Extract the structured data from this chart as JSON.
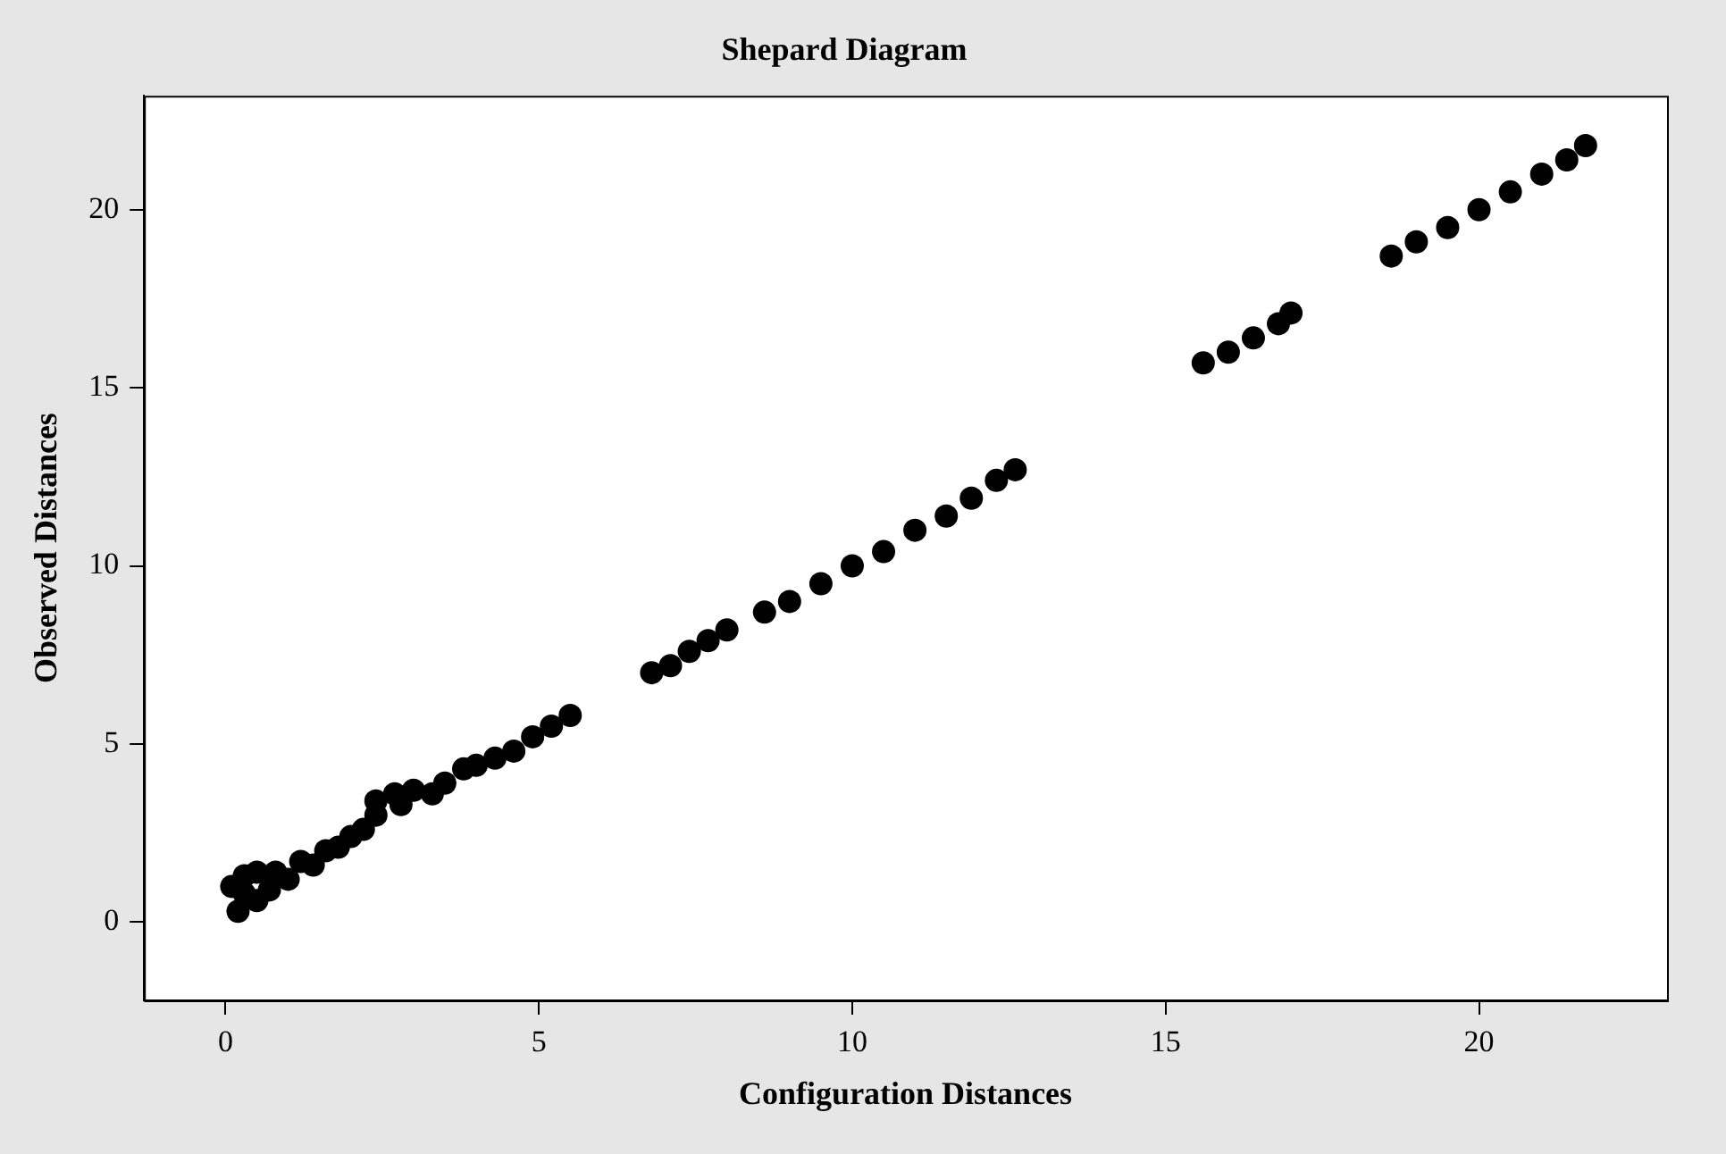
{
  "chart_data": {
    "type": "scatter",
    "title": "Shepard Diagram",
    "xlabel": "Configuration Distances",
    "ylabel": "Observed Distances",
    "x": [
      0.1,
      0.2,
      0.3,
      0.3,
      0.5,
      0.5,
      0.7,
      0.8,
      1.0,
      1.2,
      1.4,
      1.6,
      1.8,
      2.0,
      2.2,
      2.4,
      2.4,
      2.7,
      2.8,
      3.0,
      3.3,
      3.5,
      3.8,
      4.0,
      4.3,
      4.6,
      4.9,
      5.2,
      5.5,
      6.8,
      7.1,
      7.4,
      7.7,
      8.0,
      8.6,
      9.0,
      9.5,
      10.0,
      10.5,
      11.0,
      11.5,
      11.9,
      12.3,
      12.6,
      15.6,
      16.0,
      16.4,
      16.8,
      17.0,
      18.6,
      19.0,
      19.5,
      20.0,
      20.5,
      21.0,
      21.4,
      21.7
    ],
    "series": [
      {
        "color": "#000000",
        "values": [
          1.0,
          0.3,
          0.8,
          1.3,
          0.6,
          1.4,
          0.9,
          1.4,
          1.2,
          1.7,
          1.6,
          2.0,
          2.1,
          2.4,
          2.6,
          3.4,
          3.0,
          3.6,
          3.3,
          3.7,
          3.6,
          3.9,
          4.3,
          4.4,
          4.6,
          4.8,
          5.2,
          5.5,
          5.8,
          7.0,
          7.2,
          7.6,
          7.9,
          8.2,
          8.7,
          9.0,
          9.5,
          10.0,
          10.4,
          11.0,
          11.4,
          11.9,
          12.4,
          12.7,
          15.7,
          16.0,
          16.4,
          16.8,
          17.1,
          18.7,
          19.1,
          19.5,
          20.0,
          20.5,
          21.0,
          21.4,
          21.8
        ]
      }
    ],
    "xlim": [
      -1.3,
      23
    ],
    "ylim": [
      -2.2,
      23.2
    ],
    "xticks": [
      0,
      5,
      10,
      15,
      20
    ],
    "yticks": [
      0,
      5,
      10,
      15,
      20
    ],
    "marker": "circle",
    "grid": false,
    "legend": false
  }
}
